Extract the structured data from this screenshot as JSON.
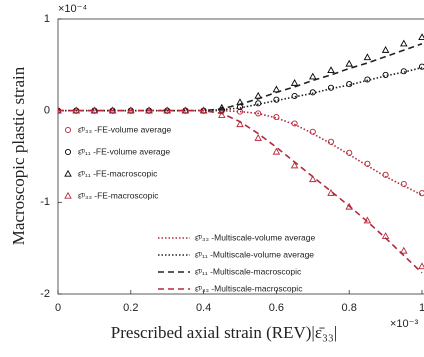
{
  "chart_data": {
    "type": "line",
    "x_label": "Prescribed axial strain (REV)|ε̄₃₃|",
    "y_label": "Macroscopic plastic strain",
    "x_multiplier": "×10⁻³",
    "y_multiplier": "×10⁻⁴",
    "xlim": [
      0,
      1
    ],
    "ylim": [
      -2,
      1
    ],
    "xticks": [
      0,
      0.2,
      0.4,
      0.6,
      0.8,
      1
    ],
    "yticks": [
      -2,
      -1,
      0,
      1
    ],
    "grid": false,
    "x": [
      0,
      0.05,
      0.1,
      0.15,
      0.2,
      0.25,
      0.3,
      0.35,
      0.4,
      0.45,
      0.5,
      0.55,
      0.6,
      0.65,
      0.7,
      0.75,
      0.8,
      0.85,
      0.9,
      0.95,
      1
    ],
    "series": [
      {
        "name": "ε̄ᵖ₃₃ -FE-volume average",
        "color": "#b5283a",
        "marker": "circle",
        "values": [
          0,
          0,
          0,
          0,
          0,
          0,
          0,
          0,
          0,
          0,
          -0.01,
          -0.03,
          -0.07,
          -0.14,
          -0.23,
          -0.34,
          -0.46,
          -0.58,
          -0.7,
          -0.8,
          -0.9
        ]
      },
      {
        "name": "ε̄ᵖ₁₁ -FE-volume average",
        "color": "#000000",
        "marker": "circle",
        "values": [
          0,
          0,
          0,
          0,
          0,
          0,
          0,
          0,
          0,
          0.01,
          0.04,
          0.08,
          0.12,
          0.16,
          0.2,
          0.25,
          0.29,
          0.34,
          0.39,
          0.43,
          0.48
        ]
      },
      {
        "name": "ε̄ᵖ₁₁ -FE-macroscopic",
        "color": "#000000",
        "marker": "triangle",
        "values": [
          0,
          0,
          0,
          0,
          0,
          0,
          0,
          0,
          0,
          0.03,
          0.09,
          0.16,
          0.23,
          0.3,
          0.37,
          0.44,
          0.51,
          0.58,
          0.66,
          0.73,
          0.8
        ]
      },
      {
        "name": "ε̄ᵖ₃₃ -FE-macroscopic",
        "color": "#b5283a",
        "marker": "triangle",
        "values": [
          0,
          0,
          0,
          0,
          0,
          0,
          0,
          0,
          0,
          -0.05,
          -0.15,
          -0.3,
          -0.45,
          -0.6,
          -0.75,
          -0.9,
          -1.05,
          -1.2,
          -1.37,
          -1.53,
          -1.7
        ]
      },
      {
        "name": "ε̄ᵖ₃₃ -Multiscale-volume average",
        "color": "#b5283a",
        "dash": "dotted",
        "values": [
          0,
          0,
          0,
          0,
          0,
          0,
          0,
          0,
          0,
          0,
          -0.01,
          -0.03,
          -0.08,
          -0.15,
          -0.25,
          -0.36,
          -0.48,
          -0.6,
          -0.72,
          -0.82,
          -0.92
        ]
      },
      {
        "name": "ε̄ᵖ₁₁ -Multiscale-volume average",
        "color": "#222222",
        "dash": "dotted",
        "values": [
          0,
          0,
          0,
          0,
          0,
          0,
          0,
          0,
          0,
          0.01,
          0.03,
          0.07,
          0.11,
          0.15,
          0.19,
          0.24,
          0.28,
          0.33,
          0.38,
          0.42,
          0.47
        ]
      },
      {
        "name": "ε̄ᵖ₁₁ -Multiscale-macroscopic",
        "color": "#222222",
        "dash": "dashed",
        "values": [
          0,
          0,
          0,
          0,
          0,
          0,
          0,
          0,
          0,
          0.02,
          0.07,
          0.13,
          0.2,
          0.26,
          0.33,
          0.39,
          0.46,
          0.52,
          0.59,
          0.66,
          0.73
        ]
      },
      {
        "name": "ε̄ᵖ₃₃ -Multiscale-macroscopic",
        "color": "#b5283a",
        "dash": "dashed",
        "values": [
          0,
          0,
          0,
          0,
          0,
          0,
          0,
          0,
          0,
          -0.03,
          -0.12,
          -0.25,
          -0.4,
          -0.56,
          -0.72,
          -0.88,
          -1.04,
          -1.21,
          -1.39,
          -1.58,
          -1.77
        ]
      }
    ]
  }
}
